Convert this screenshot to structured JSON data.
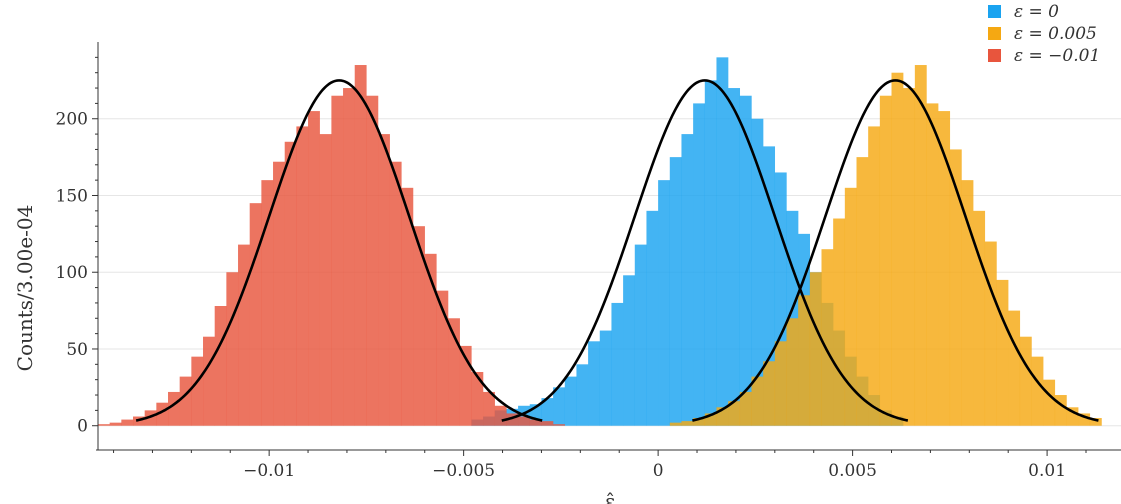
{
  "chart_data": {
    "type": "bar",
    "ylabel": "Counts/3.00e-04",
    "xlabel": "ε̂",
    "xlim": [
      -0.0144,
      0.0119
    ],
    "ylim": [
      -8,
      250
    ],
    "grid": "horizontal",
    "legend_position": "top-right",
    "bin_width": 0.0003,
    "x_ticks": [
      {
        "value": -0.01,
        "label": "−0.01"
      },
      {
        "value": -0.005,
        "label": "−0.005"
      },
      {
        "value": 0,
        "label": "0"
      },
      {
        "value": 0.005,
        "label": "0.005"
      },
      {
        "value": 0.01,
        "label": "0.01"
      }
    ],
    "y_ticks": [
      {
        "value": 0,
        "label": "0"
      },
      {
        "value": 50,
        "label": "50"
      },
      {
        "value": 100,
        "label": "100"
      },
      {
        "value": 150,
        "label": "150"
      },
      {
        "value": 200,
        "label": "200"
      }
    ],
    "series": [
      {
        "name": "ε = 0",
        "color": "#1aa3f0",
        "fit_mean": 0.0012,
        "fit_sigma": 0.0018,
        "fit_peak": 225,
        "bins": [
          [
            -0.0048,
            4
          ],
          [
            -0.0045,
            6
          ],
          [
            -0.0042,
            10
          ],
          [
            -0.0039,
            11
          ],
          [
            -0.0036,
            13
          ],
          [
            -0.0033,
            14
          ],
          [
            -0.003,
            18
          ],
          [
            -0.0027,
            25
          ],
          [
            -0.0024,
            32
          ],
          [
            -0.0021,
            40
          ],
          [
            -0.0018,
            55
          ],
          [
            -0.0015,
            62
          ],
          [
            -0.0012,
            80
          ],
          [
            -0.0009,
            98
          ],
          [
            -0.0006,
            118
          ],
          [
            -0.0003,
            140
          ],
          [
            0.0,
            160
          ],
          [
            0.0003,
            175
          ],
          [
            0.0006,
            190
          ],
          [
            0.0009,
            210
          ],
          [
            0.0012,
            225
          ],
          [
            0.0015,
            240
          ],
          [
            0.0018,
            220
          ],
          [
            0.0021,
            215
          ],
          [
            0.0024,
            200
          ],
          [
            0.0027,
            182
          ],
          [
            0.003,
            165
          ],
          [
            0.0033,
            140
          ],
          [
            0.0036,
            125
          ],
          [
            0.0039,
            100
          ],
          [
            0.0042,
            80
          ],
          [
            0.0045,
            62
          ],
          [
            0.0048,
            45
          ],
          [
            0.0051,
            32
          ],
          [
            0.0054,
            20
          ],
          [
            0.0057,
            10
          ],
          [
            0.006,
            6
          ]
        ]
      },
      {
        "name": "ε = 0.005",
        "color": "#f5a812",
        "fit_mean": 0.0061,
        "fit_sigma": 0.0018,
        "fit_peak": 225,
        "bins": [
          [
            0.0003,
            2
          ],
          [
            0.0006,
            3
          ],
          [
            0.0009,
            5
          ],
          [
            0.0012,
            8
          ],
          [
            0.0015,
            12
          ],
          [
            0.0018,
            16
          ],
          [
            0.0021,
            22
          ],
          [
            0.0024,
            32
          ],
          [
            0.0027,
            42
          ],
          [
            0.003,
            55
          ],
          [
            0.0033,
            70
          ],
          [
            0.0036,
            85
          ],
          [
            0.0039,
            100
          ],
          [
            0.0042,
            115
          ],
          [
            0.0045,
            135
          ],
          [
            0.0048,
            155
          ],
          [
            0.0051,
            175
          ],
          [
            0.0054,
            195
          ],
          [
            0.0057,
            215
          ],
          [
            0.006,
            230
          ],
          [
            0.0063,
            220
          ],
          [
            0.0066,
            235
          ],
          [
            0.0069,
            210
          ],
          [
            0.0072,
            205
          ],
          [
            0.0075,
            180
          ],
          [
            0.0078,
            160
          ],
          [
            0.0081,
            140
          ],
          [
            0.0084,
            120
          ],
          [
            0.0087,
            95
          ],
          [
            0.009,
            75
          ],
          [
            0.0093,
            58
          ],
          [
            0.0096,
            45
          ],
          [
            0.0099,
            30
          ],
          [
            0.0102,
            20
          ],
          [
            0.0105,
            12
          ],
          [
            0.0108,
            8
          ],
          [
            0.0111,
            5
          ]
        ]
      },
      {
        "name": "ε = −0.01",
        "color": "#e8553d",
        "fit_mean": -0.0082,
        "fit_sigma": 0.0018,
        "fit_peak": 225,
        "bins": [
          [
            -0.0144,
            1
          ],
          [
            -0.0141,
            2
          ],
          [
            -0.0138,
            4
          ],
          [
            -0.0135,
            6
          ],
          [
            -0.0132,
            10
          ],
          [
            -0.0129,
            15
          ],
          [
            -0.0126,
            22
          ],
          [
            -0.0123,
            32
          ],
          [
            -0.012,
            45
          ],
          [
            -0.0117,
            58
          ],
          [
            -0.0114,
            78
          ],
          [
            -0.0111,
            100
          ],
          [
            -0.0108,
            118
          ],
          [
            -0.0105,
            145
          ],
          [
            -0.0102,
            160
          ],
          [
            -0.0099,
            172
          ],
          [
            -0.0096,
            185
          ],
          [
            -0.0093,
            195
          ],
          [
            -0.009,
            205
          ],
          [
            -0.0087,
            190
          ],
          [
            -0.0084,
            215
          ],
          [
            -0.0081,
            220
          ],
          [
            -0.0078,
            235
          ],
          [
            -0.0075,
            215
          ],
          [
            -0.0072,
            190
          ],
          [
            -0.0069,
            172
          ],
          [
            -0.0066,
            155
          ],
          [
            -0.0063,
            130
          ],
          [
            -0.006,
            112
          ],
          [
            -0.0057,
            88
          ],
          [
            -0.0054,
            70
          ],
          [
            -0.0051,
            52
          ],
          [
            -0.0048,
            35
          ],
          [
            -0.0045,
            22
          ],
          [
            -0.0042,
            13
          ],
          [
            -0.0039,
            8
          ],
          [
            -0.0036,
            6
          ],
          [
            -0.0033,
            4
          ],
          [
            -0.003,
            3
          ],
          [
            -0.0027,
            1
          ]
        ]
      }
    ]
  }
}
